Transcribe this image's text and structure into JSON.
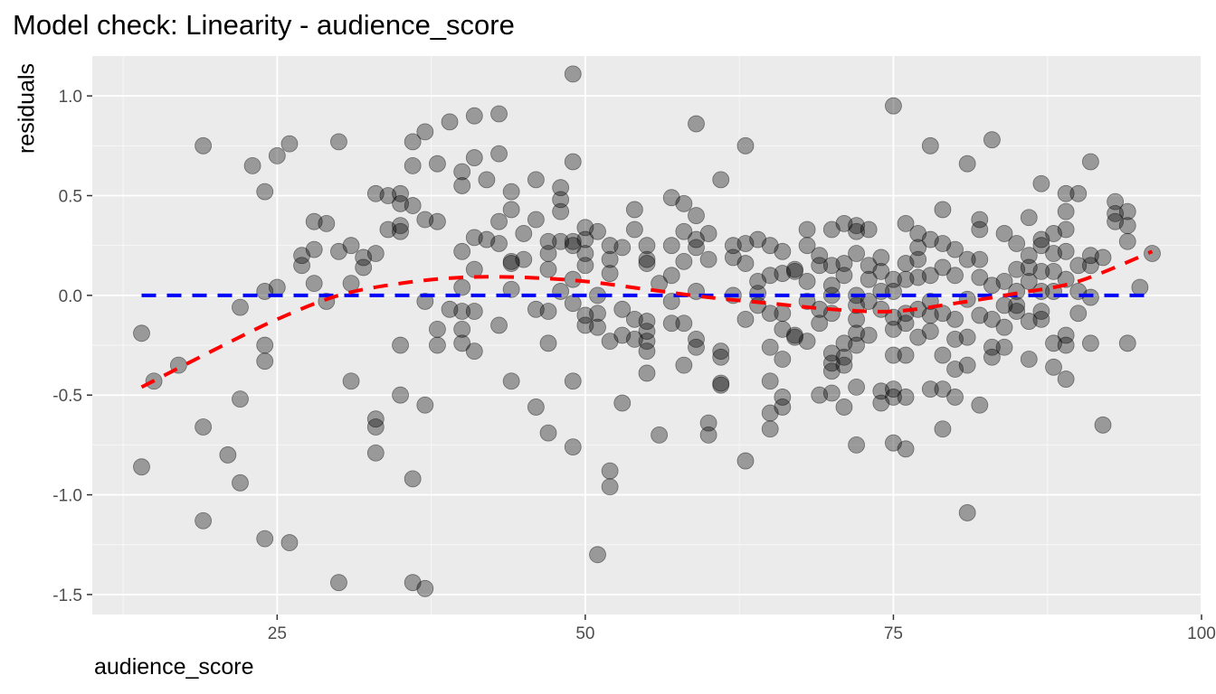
{
  "chart_data": {
    "type": "scatter",
    "title": "Model check: Linearity - audience_score",
    "xlabel": "audience_score",
    "ylabel": "residuals",
    "xlim": [
      10,
      100
    ],
    "ylim": [
      -1.6,
      1.2
    ],
    "x_ticks": [
      25,
      50,
      75,
      100
    ],
    "x_tick_labels": [
      "25",
      "50",
      "75",
      "100"
    ],
    "y_ticks": [
      1.0,
      0.5,
      0.0,
      -0.5,
      -1.0,
      -1.5
    ],
    "y_tick_labels": [
      "1.0",
      "0.5",
      "0.0",
      "-0.5",
      "-1.0",
      "-1.5"
    ],
    "grid": true,
    "panel_background": "#ebebeb",
    "point_color": "#000000",
    "point_alpha": 0.35,
    "reference_line": {
      "y": 0,
      "x_range": [
        14,
        96
      ],
      "color": "#0000ff",
      "style": "dashed"
    },
    "smooth_line": {
      "color": "#ff0000",
      "style": "dashed",
      "x": [
        14,
        20,
        25,
        30,
        35,
        40,
        45,
        50,
        55,
        60,
        65,
        70,
        75,
        80,
        85,
        90,
        96
      ],
      "y": [
        -0.46,
        -0.27,
        -0.12,
        0.0,
        0.06,
        0.09,
        0.09,
        0.07,
        0.03,
        -0.01,
        -0.04,
        -0.07,
        -0.08,
        -0.04,
        0.01,
        0.07,
        0.22
      ]
    },
    "points": [
      [
        14,
        -0.19
      ],
      [
        14,
        -0.86
      ],
      [
        15,
        -0.43
      ],
      [
        17,
        -0.35
      ],
      [
        19,
        0.75
      ],
      [
        19,
        -0.66
      ],
      [
        19,
        -1.13
      ],
      [
        21,
        -0.8
      ],
      [
        22,
        -0.06
      ],
      [
        22,
        -0.52
      ],
      [
        22,
        -0.94
      ],
      [
        23,
        0.65
      ],
      [
        24,
        0.52
      ],
      [
        24,
        0.02
      ],
      [
        24,
        -0.25
      ],
      [
        24,
        -0.33
      ],
      [
        24,
        -1.22
      ],
      [
        25,
        0.7
      ],
      [
        25,
        0.04
      ],
      [
        26,
        0.76
      ],
      [
        26,
        -1.24
      ],
      [
        27,
        0.2
      ],
      [
        27,
        0.15
      ],
      [
        28,
        0.37
      ],
      [
        28,
        0.23
      ],
      [
        28,
        0.06
      ],
      [
        29,
        0.36
      ],
      [
        29,
        -0.03
      ],
      [
        30,
        0.77
      ],
      [
        30,
        0.22
      ],
      [
        30,
        -1.44
      ],
      [
        31,
        0.25
      ],
      [
        31,
        0.06
      ],
      [
        31,
        -0.43
      ],
      [
        32,
        0.19
      ],
      [
        32,
        0.14
      ],
      [
        33,
        0.51
      ],
      [
        33,
        0.21
      ],
      [
        33,
        -0.62
      ],
      [
        33,
        -0.66
      ],
      [
        33,
        -0.79
      ],
      [
        34,
        0.5
      ],
      [
        34,
        0.33
      ],
      [
        35,
        0.51
      ],
      [
        35,
        0.46
      ],
      [
        35,
        0.35
      ],
      [
        35,
        0.32
      ],
      [
        35,
        -0.25
      ],
      [
        35,
        -0.5
      ],
      [
        36,
        0.77
      ],
      [
        36,
        0.65
      ],
      [
        36,
        0.45
      ],
      [
        36,
        -0.92
      ],
      [
        36,
        -1.44
      ],
      [
        37,
        0.82
      ],
      [
        37,
        0.38
      ],
      [
        37,
        -0.03
      ],
      [
        37,
        -0.55
      ],
      [
        37,
        -1.47
      ],
      [
        38,
        0.66
      ],
      [
        38,
        0.37
      ],
      [
        38,
        -0.17
      ],
      [
        38,
        -0.25
      ],
      [
        39,
        0.87
      ],
      [
        39,
        -0.07
      ],
      [
        40,
        0.62
      ],
      [
        40,
        0.55
      ],
      [
        40,
        0.22
      ],
      [
        40,
        0.04
      ],
      [
        40,
        -0.08
      ],
      [
        40,
        -0.17
      ],
      [
        40,
        -0.24
      ],
      [
        41,
        0.9
      ],
      [
        41,
        0.69
      ],
      [
        41,
        0.29
      ],
      [
        41,
        0.13
      ],
      [
        41,
        -0.08
      ],
      [
        41,
        -0.28
      ],
      [
        42,
        0.58
      ],
      [
        42,
        0.28
      ],
      [
        43,
        0.91
      ],
      [
        43,
        0.71
      ],
      [
        43,
        0.37
      ],
      [
        43,
        0.26
      ],
      [
        43,
        -0.15
      ],
      [
        44,
        0.52
      ],
      [
        44,
        0.43
      ],
      [
        44,
        0.17
      ],
      [
        44,
        0.16
      ],
      [
        44,
        0.03
      ],
      [
        44,
        -0.43
      ],
      [
        45,
        0.31
      ],
      [
        45,
        0.18
      ],
      [
        46,
        0.58
      ],
      [
        46,
        0.38
      ],
      [
        46,
        -0.07
      ],
      [
        46,
        -0.56
      ],
      [
        47,
        0.27
      ],
      [
        47,
        0.21
      ],
      [
        47,
        0.13
      ],
      [
        47,
        -0.08
      ],
      [
        47,
        -0.24
      ],
      [
        47,
        -0.69
      ],
      [
        48,
        0.54
      ],
      [
        48,
        0.48
      ],
      [
        48,
        0.42
      ],
      [
        48,
        0.27
      ],
      [
        48,
        0.02
      ],
      [
        49,
        1.11
      ],
      [
        49,
        0.67
      ],
      [
        49,
        0.27
      ],
      [
        49,
        0.25
      ],
      [
        49,
        0.08
      ],
      [
        49,
        -0.04
      ],
      [
        49,
        -0.43
      ],
      [
        49,
        -0.76
      ],
      [
        50,
        0.34
      ],
      [
        50,
        0.28
      ],
      [
        50,
        0.21
      ],
      [
        50,
        0.15
      ],
      [
        50,
        -0.1
      ],
      [
        50,
        -0.15
      ],
      [
        51,
        0.32
      ],
      [
        51,
        0.0
      ],
      [
        51,
        -0.09
      ],
      [
        51,
        -0.16
      ],
      [
        51,
        -1.3
      ],
      [
        52,
        0.25
      ],
      [
        52,
        0.18
      ],
      [
        52,
        0.11
      ],
      [
        52,
        -0.23
      ],
      [
        52,
        -0.88
      ],
      [
        52,
        -0.96
      ],
      [
        53,
        0.24
      ],
      [
        53,
        -0.07
      ],
      [
        53,
        -0.2
      ],
      [
        53,
        -0.54
      ],
      [
        54,
        0.43
      ],
      [
        54,
        0.33
      ],
      [
        54,
        -0.12
      ],
      [
        54,
        -0.22
      ],
      [
        55,
        0.25
      ],
      [
        55,
        0.18
      ],
      [
        55,
        0.16
      ],
      [
        55,
        -0.13
      ],
      [
        55,
        -0.18
      ],
      [
        55,
        -0.23
      ],
      [
        55,
        -0.28
      ],
      [
        55,
        -0.39
      ],
      [
        56,
        0.06
      ],
      [
        56,
        -0.7
      ],
      [
        57,
        0.49
      ],
      [
        57,
        0.25
      ],
      [
        57,
        0.1
      ],
      [
        57,
        -0.03
      ],
      [
        57,
        -0.14
      ],
      [
        58,
        0.46
      ],
      [
        58,
        0.32
      ],
      [
        58,
        0.17
      ],
      [
        58,
        -0.14
      ],
      [
        58,
        -0.35
      ],
      [
        59,
        0.86
      ],
      [
        59,
        0.4
      ],
      [
        59,
        0.28
      ],
      [
        59,
        0.24
      ],
      [
        59,
        0.02
      ],
      [
        59,
        -0.22
      ],
      [
        59,
        -0.26
      ],
      [
        60,
        0.31
      ],
      [
        60,
        0.18
      ],
      [
        60,
        -0.64
      ],
      [
        60,
        -0.7
      ],
      [
        61,
        0.58
      ],
      [
        61,
        -0.28
      ],
      [
        61,
        -0.31
      ],
      [
        61,
        -0.44
      ],
      [
        61,
        -0.45
      ],
      [
        62,
        0.25
      ],
      [
        62,
        0.19
      ],
      [
        62,
        0.0
      ],
      [
        63,
        0.75
      ],
      [
        63,
        0.26
      ],
      [
        63,
        0.16
      ],
      [
        63,
        -0.12
      ],
      [
        63,
        -0.83
      ],
      [
        64,
        0.28
      ],
      [
        64,
        0.07
      ],
      [
        64,
        0.01
      ],
      [
        64,
        -0.05
      ],
      [
        65,
        0.25
      ],
      [
        65,
        0.1
      ],
      [
        65,
        -0.09
      ],
      [
        65,
        -0.26
      ],
      [
        65,
        -0.43
      ],
      [
        65,
        -0.59
      ],
      [
        65,
        -0.67
      ],
      [
        66,
        0.22
      ],
      [
        66,
        0.11
      ],
      [
        66,
        -0.09
      ],
      [
        66,
        -0.17
      ],
      [
        66,
        -0.32
      ],
      [
        66,
        -0.51
      ],
      [
        66,
        -0.56
      ],
      [
        67,
        0.13
      ],
      [
        67,
        0.12
      ],
      [
        67,
        -0.2
      ],
      [
        67,
        -0.21
      ],
      [
        68,
        0.33
      ],
      [
        68,
        0.25
      ],
      [
        68,
        0.07
      ],
      [
        68,
        -0.03
      ],
      [
        68,
        -0.23
      ],
      [
        69,
        0.2
      ],
      [
        69,
        0.15
      ],
      [
        69,
        -0.07
      ],
      [
        69,
        -0.14
      ],
      [
        69,
        -0.5
      ],
      [
        70,
        0.33
      ],
      [
        70,
        0.15
      ],
      [
        70,
        0.05
      ],
      [
        70,
        0.0
      ],
      [
        70,
        -0.09
      ],
      [
        70,
        -0.29
      ],
      [
        70,
        -0.34
      ],
      [
        70,
        -0.38
      ],
      [
        70,
        -0.49
      ],
      [
        71,
        0.36
      ],
      [
        71,
        0.16
      ],
      [
        71,
        0.1
      ],
      [
        71,
        -0.24
      ],
      [
        71,
        -0.31
      ],
      [
        71,
        -0.35
      ],
      [
        71,
        -0.56
      ],
      [
        72,
        0.35
      ],
      [
        72,
        0.32
      ],
      [
        72,
        0.21
      ],
      [
        72,
        0.0
      ],
      [
        72,
        -0.05
      ],
      [
        72,
        -0.12
      ],
      [
        72,
        -0.19
      ],
      [
        72,
        -0.25
      ],
      [
        72,
        -0.46
      ],
      [
        72,
        -0.75
      ],
      [
        73,
        0.33
      ],
      [
        73,
        0.15
      ],
      [
        73,
        0.08
      ],
      [
        73,
        -0.03
      ],
      [
        73,
        -0.2
      ],
      [
        74,
        0.19
      ],
      [
        74,
        0.12
      ],
      [
        74,
        0.02
      ],
      [
        74,
        -0.07
      ],
      [
        74,
        -0.48
      ],
      [
        74,
        -0.54
      ],
      [
        75,
        0.95
      ],
      [
        75,
        0.08
      ],
      [
        75,
        0.02
      ],
      [
        75,
        -0.11
      ],
      [
        75,
        -0.17
      ],
      [
        75,
        -0.3
      ],
      [
        75,
        -0.47
      ],
      [
        75,
        -0.51
      ],
      [
        75,
        -0.74
      ],
      [
        76,
        0.36
      ],
      [
        76,
        0.16
      ],
      [
        76,
        0.08
      ],
      [
        76,
        -0.09
      ],
      [
        76,
        -0.14
      ],
      [
        76,
        -0.3
      ],
      [
        76,
        -0.51
      ],
      [
        76,
        -0.77
      ],
      [
        77,
        0.31
      ],
      [
        77,
        0.24
      ],
      [
        77,
        0.18
      ],
      [
        77,
        0.09
      ],
      [
        77,
        -0.07
      ],
      [
        77,
        -0.21
      ],
      [
        78,
        0.75
      ],
      [
        78,
        0.28
      ],
      [
        78,
        0.1
      ],
      [
        78,
        -0.03
      ],
      [
        78,
        -0.1
      ],
      [
        78,
        -0.18
      ],
      [
        78,
        -0.47
      ],
      [
        79,
        0.43
      ],
      [
        79,
        0.26
      ],
      [
        79,
        0.14
      ],
      [
        79,
        -0.09
      ],
      [
        79,
        -0.3
      ],
      [
        79,
        -0.47
      ],
      [
        79,
        -0.67
      ],
      [
        80,
        0.23
      ],
      [
        80,
        0.1
      ],
      [
        80,
        -0.12
      ],
      [
        80,
        -0.22
      ],
      [
        80,
        -0.37
      ],
      [
        80,
        -0.51
      ],
      [
        81,
        0.66
      ],
      [
        81,
        0.18
      ],
      [
        81,
        -0.02
      ],
      [
        81,
        -0.21
      ],
      [
        81,
        -0.35
      ],
      [
        81,
        -1.09
      ],
      [
        82,
        0.38
      ],
      [
        82,
        0.33
      ],
      [
        82,
        0.18
      ],
      [
        82,
        0.09
      ],
      [
        82,
        -0.1
      ],
      [
        82,
        -0.55
      ],
      [
        83,
        0.78
      ],
      [
        83,
        0.05
      ],
      [
        83,
        -0.12
      ],
      [
        83,
        -0.26
      ],
      [
        83,
        -0.31
      ],
      [
        84,
        0.31
      ],
      [
        84,
        0.07
      ],
      [
        84,
        -0.05
      ],
      [
        84,
        -0.16
      ],
      [
        84,
        -0.26
      ],
      [
        85,
        0.26
      ],
      [
        85,
        0.13
      ],
      [
        85,
        0.02
      ],
      [
        85,
        -0.05
      ],
      [
        85,
        -0.08
      ],
      [
        86,
        0.39
      ],
      [
        86,
        0.2
      ],
      [
        86,
        0.14
      ],
      [
        86,
        0.07
      ],
      [
        86,
        -0.13
      ],
      [
        86,
        -0.32
      ],
      [
        87,
        0.56
      ],
      [
        87,
        0.28
      ],
      [
        87,
        0.25
      ],
      [
        87,
        0.12
      ],
      [
        87,
        0.02
      ],
      [
        87,
        -0.08
      ],
      [
        87,
        -0.12
      ],
      [
        88,
        0.31
      ],
      [
        88,
        0.21
      ],
      [
        88,
        0.12
      ],
      [
        88,
        0.02
      ],
      [
        88,
        -0.24
      ],
      [
        88,
        -0.36
      ],
      [
        89,
        0.51
      ],
      [
        89,
        0.42
      ],
      [
        89,
        0.33
      ],
      [
        89,
        0.22
      ],
      [
        89,
        0.08
      ],
      [
        89,
        -0.2
      ],
      [
        89,
        -0.25
      ],
      [
        89,
        -0.42
      ],
      [
        90,
        0.51
      ],
      [
        90,
        0.15
      ],
      [
        90,
        0.02
      ],
      [
        90,
        -0.09
      ],
      [
        91,
        0.67
      ],
      [
        91,
        0.2
      ],
      [
        91,
        0.15
      ],
      [
        91,
        -0.01
      ],
      [
        91,
        -0.24
      ],
      [
        92,
        0.19
      ],
      [
        92,
        -0.65
      ],
      [
        93,
        0.47
      ],
      [
        93,
        0.41
      ],
      [
        93,
        0.37
      ],
      [
        94,
        0.42
      ],
      [
        94,
        0.35
      ],
      [
        94,
        0.27
      ],
      [
        94,
        -0.24
      ],
      [
        95,
        0.04
      ],
      [
        96,
        0.21
      ]
    ]
  }
}
